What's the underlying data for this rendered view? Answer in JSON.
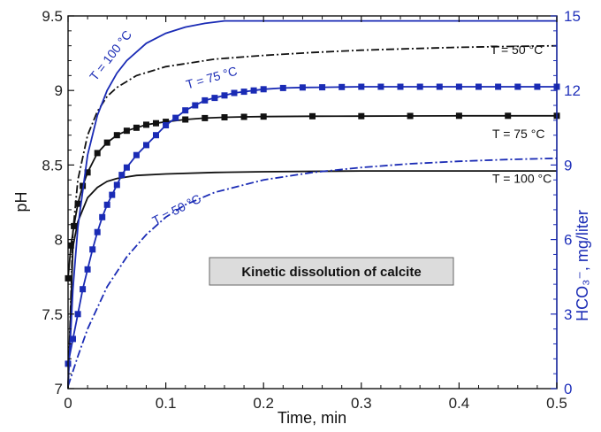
{
  "chart_data": {
    "type": "line",
    "title": "",
    "xlabel": "Time, min",
    "ylabel_left": "pH",
    "ylabel_right": "HCO₃⁻, mg/liter",
    "xlim": [
      0,
      0.5
    ],
    "ylim_left": [
      7,
      9.5
    ],
    "ylim_right": [
      0,
      15
    ],
    "x_ticks": [
      "0",
      "0.1",
      "0.2",
      "0.3",
      "0.4",
      "0.5"
    ],
    "y_left_ticks": [
      "7",
      "7.5",
      "8",
      "8.5",
      "9",
      "9.5"
    ],
    "y_right_ticks": [
      "0",
      "3",
      "6",
      "9",
      "12",
      "15"
    ],
    "grid": false,
    "box_annotation": "Kinetic dissolution of calcite",
    "colors": {
      "ph": "#111111",
      "hco3": "#1a2bb5"
    },
    "series": [
      {
        "label": "T = 50 °C",
        "axis": "left",
        "style": "dashdot",
        "color": "#111111",
        "x": [
          0,
          0.005,
          0.01,
          0.02,
          0.03,
          0.04,
          0.05,
          0.07,
          0.1,
          0.15,
          0.2,
          0.25,
          0.3,
          0.35,
          0.4,
          0.45,
          0.5
        ],
        "y": [
          7.0,
          8.05,
          8.4,
          8.7,
          8.86,
          8.96,
          9.02,
          9.1,
          9.16,
          9.21,
          9.235,
          9.255,
          9.27,
          9.28,
          9.29,
          9.295,
          9.3
        ]
      },
      {
        "label": "T = 75 °C",
        "axis": "left",
        "style": "line-square",
        "color": "#111111",
        "x": [
          0,
          0.003,
          0.006,
          0.01,
          0.015,
          0.02,
          0.03,
          0.04,
          0.05,
          0.06,
          0.07,
          0.08,
          0.09,
          0.1,
          0.12,
          0.14,
          0.16,
          0.18,
          0.2,
          0.25,
          0.3,
          0.35,
          0.4,
          0.45,
          0.5
        ],
        "y": [
          7.74,
          7.96,
          8.09,
          8.24,
          8.36,
          8.45,
          8.58,
          8.65,
          8.7,
          8.73,
          8.75,
          8.77,
          8.78,
          8.79,
          8.805,
          8.815,
          8.82,
          8.823,
          8.825,
          8.827,
          8.828,
          8.829,
          8.83,
          8.83,
          8.83
        ]
      },
      {
        "label": "T = 100 °C",
        "axis": "left",
        "style": "solid",
        "color": "#111111",
        "x": [
          0,
          0.005,
          0.01,
          0.02,
          0.03,
          0.04,
          0.05,
          0.07,
          0.1,
          0.15,
          0.2,
          0.3,
          0.4,
          0.5
        ],
        "y": [
          7.0,
          7.95,
          8.12,
          8.28,
          8.35,
          8.39,
          8.41,
          8.43,
          8.44,
          8.45,
          8.455,
          8.46,
          8.46,
          8.46
        ]
      },
      {
        "label": "T = 50 °C",
        "axis": "right",
        "style": "dashdot",
        "color": "#1a2bb5",
        "x": [
          0,
          0.01,
          0.02,
          0.04,
          0.06,
          0.08,
          0.1,
          0.12,
          0.15,
          0.2,
          0.25,
          0.3,
          0.35,
          0.4,
          0.45,
          0.5
        ],
        "y": [
          0.1,
          1.3,
          2.4,
          4.1,
          5.3,
          6.2,
          6.9,
          7.4,
          7.9,
          8.4,
          8.7,
          8.9,
          9.05,
          9.15,
          9.22,
          9.27
        ]
      },
      {
        "label": "T = 75 °C",
        "axis": "right",
        "style": "line-square",
        "color": "#1a2bb5",
        "x": [
          0,
          0.005,
          0.01,
          0.015,
          0.02,
          0.025,
          0.03,
          0.035,
          0.04,
          0.045,
          0.05,
          0.055,
          0.06,
          0.07,
          0.08,
          0.09,
          0.1,
          0.11,
          0.12,
          0.13,
          0.14,
          0.15,
          0.16,
          0.17,
          0.18,
          0.19,
          0.2,
          0.22,
          0.24,
          0.26,
          0.28,
          0.3,
          0.32,
          0.34,
          0.36,
          0.38,
          0.4,
          0.42,
          0.44,
          0.46,
          0.48,
          0.5
        ],
        "y": [
          1.0,
          2.0,
          3.0,
          4.0,
          4.8,
          5.6,
          6.3,
          6.9,
          7.4,
          7.8,
          8.2,
          8.6,
          8.9,
          9.4,
          9.8,
          10.2,
          10.6,
          10.9,
          11.2,
          11.4,
          11.6,
          11.7,
          11.8,
          11.9,
          11.95,
          12.0,
          12.05,
          12.1,
          12.12,
          12.13,
          12.14,
          12.15,
          12.15,
          12.15,
          12.15,
          12.15,
          12.15,
          12.15,
          12.15,
          12.15,
          12.15,
          12.15
        ]
      },
      {
        "label": "T = 100 °C",
        "axis": "right",
        "style": "solid",
        "color": "#1a2bb5",
        "x": [
          0,
          0.005,
          0.01,
          0.02,
          0.03,
          0.04,
          0.05,
          0.06,
          0.08,
          0.1,
          0.12,
          0.14,
          0.16,
          0.2,
          0.3,
          0.4,
          0.5
        ],
        "y": [
          0.2,
          4.0,
          6.5,
          9.4,
          11.0,
          12.0,
          12.7,
          13.2,
          13.9,
          14.3,
          14.55,
          14.7,
          14.8,
          14.8,
          14.8,
          14.8,
          14.8
        ]
      }
    ],
    "annotations": [
      {
        "text": "T = 100 °C",
        "color": "#1a2bb5",
        "rotation": -52,
        "x": 0.047,
        "y_right": 13.3
      },
      {
        "text": "T = 50 °C",
        "color": "#111111",
        "rotation": 0,
        "x": 0.432,
        "y_left": 9.245
      },
      {
        "text": "T = 75 °C",
        "color": "#1a2bb5",
        "rotation": -16,
        "x": 0.148,
        "y_right": 12.35
      },
      {
        "text": "T = 75 °C",
        "color": "#111111",
        "rotation": 0,
        "x": 0.434,
        "y_left": 8.68
      },
      {
        "text": "T = 100 °C",
        "color": "#111111",
        "rotation": 0,
        "x": 0.434,
        "y_left": 8.38
      },
      {
        "text": "T = 50 °C",
        "color": "#1a2bb5",
        "rotation": -27,
        "x": 0.113,
        "y_right": 7.05
      }
    ]
  }
}
